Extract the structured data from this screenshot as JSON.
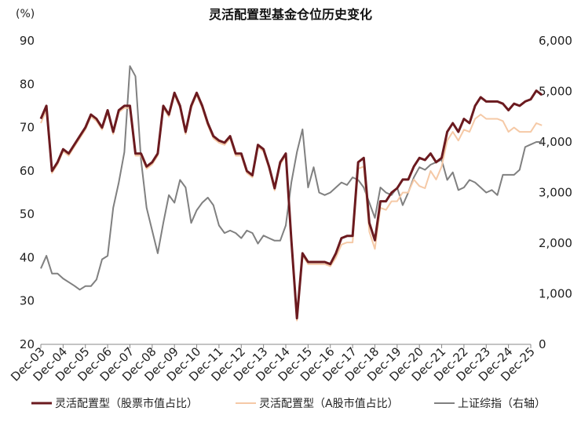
{
  "chart_data": {
    "type": "line",
    "title": "灵活配置型基金仓位历史变化",
    "y_unit": "(%)",
    "ylim_left": [
      20,
      90
    ],
    "yticks_left": [
      "20",
      "30",
      "40",
      "50",
      "60",
      "70",
      "80",
      "90"
    ],
    "ylim_right": [
      0,
      6000
    ],
    "yticks_right": [
      "0",
      "1,000",
      "2,000",
      "3,000",
      "4,000",
      "5,000",
      "6,000"
    ],
    "x_ticks": [
      "Dec-03",
      "Dec-04",
      "Dec-05",
      "Dec-06",
      "Dec-07",
      "Dec-08",
      "Dec-09",
      "Dec-10",
      "Dec-11",
      "Dec-12",
      "Dec-13",
      "Dec-14",
      "Dec-15",
      "Dec-16",
      "Dec-17",
      "Dec-18",
      "Dec-19",
      "Dec-20",
      "Dec-21",
      "Dec-22",
      "Dec-23",
      "Dec-24",
      "Dec-25"
    ],
    "grid": false,
    "legend_position": "bottom",
    "colors": {
      "stock_ratio": "#6b1a1f",
      "a_share_ratio": "#f5c9a6",
      "sse": "#808080"
    },
    "series": [
      {
        "name": "灵活配置型（股票市值占比）",
        "axis": "left",
        "points": [
          [
            0.0,
            72
          ],
          [
            0.25,
            75
          ],
          [
            0.5,
            60
          ],
          [
            0.75,
            62
          ],
          [
            1.0,
            65
          ],
          [
            1.25,
            64
          ],
          [
            1.5,
            66
          ],
          [
            1.75,
            68
          ],
          [
            2.0,
            70
          ],
          [
            2.25,
            73
          ],
          [
            2.5,
            72
          ],
          [
            2.75,
            70
          ],
          [
            3.0,
            74
          ],
          [
            3.25,
            69
          ],
          [
            3.5,
            74
          ],
          [
            3.75,
            75
          ],
          [
            4.0,
            75
          ],
          [
            4.25,
            64
          ],
          [
            4.5,
            64
          ],
          [
            4.75,
            61
          ],
          [
            5.0,
            62
          ],
          [
            5.25,
            64
          ],
          [
            5.5,
            75
          ],
          [
            5.75,
            73
          ],
          [
            6.0,
            78
          ],
          [
            6.25,
            75
          ],
          [
            6.5,
            69
          ],
          [
            6.75,
            75
          ],
          [
            7.0,
            78
          ],
          [
            7.25,
            75
          ],
          [
            7.5,
            71
          ],
          [
            7.75,
            68
          ],
          [
            8.0,
            67
          ],
          [
            8.25,
            66.5
          ],
          [
            8.5,
            68
          ],
          [
            8.75,
            64
          ],
          [
            9.0,
            64
          ],
          [
            9.25,
            60
          ],
          [
            9.5,
            59
          ],
          [
            9.75,
            66
          ],
          [
            10.0,
            65
          ],
          [
            10.25,
            61
          ],
          [
            10.5,
            56
          ],
          [
            10.75,
            62
          ],
          [
            11.0,
            64
          ],
          [
            11.25,
            44
          ],
          [
            11.5,
            26
          ],
          [
            11.75,
            41
          ],
          [
            12.0,
            39
          ],
          [
            12.25,
            39
          ],
          [
            12.5,
            39
          ],
          [
            12.75,
            39
          ],
          [
            13.0,
            38.5
          ],
          [
            13.25,
            41
          ],
          [
            13.5,
            44.5
          ],
          [
            13.75,
            45
          ],
          [
            14.0,
            45
          ],
          [
            14.25,
            62
          ],
          [
            14.5,
            63
          ],
          [
            14.75,
            48
          ],
          [
            15.0,
            44
          ],
          [
            15.25,
            53
          ],
          [
            15.5,
            53
          ],
          [
            15.75,
            55
          ],
          [
            16.0,
            56
          ],
          [
            16.25,
            58
          ],
          [
            16.5,
            58
          ],
          [
            16.75,
            61
          ],
          [
            17.0,
            63
          ],
          [
            17.25,
            62.5
          ],
          [
            17.5,
            64
          ],
          [
            17.75,
            62
          ],
          [
            18.0,
            63
          ],
          [
            18.25,
            69
          ],
          [
            18.5,
            71
          ],
          [
            18.75,
            69
          ],
          [
            19.0,
            72
          ],
          [
            19.25,
            71
          ],
          [
            19.5,
            75
          ],
          [
            19.75,
            77
          ],
          [
            20.0,
            76
          ],
          [
            20.25,
            76
          ],
          [
            20.5,
            76
          ],
          [
            20.75,
            75.5
          ],
          [
            21.0,
            74
          ],
          [
            21.25,
            75.5
          ],
          [
            21.5,
            75
          ],
          [
            21.75,
            76
          ],
          [
            22.0,
            76.5
          ],
          [
            22.25,
            78.5
          ],
          [
            22.5,
            77.5
          ]
        ]
      },
      {
        "name": "灵活配置型（A股市值占比）",
        "axis": "left",
        "points": [
          [
            0.0,
            71
          ],
          [
            0.25,
            74
          ],
          [
            0.5,
            59.5
          ],
          [
            0.75,
            61.5
          ],
          [
            1.0,
            64.5
          ],
          [
            1.25,
            63.5
          ],
          [
            1.5,
            65.5
          ],
          [
            1.75,
            67.5
          ],
          [
            2.0,
            69.5
          ],
          [
            2.25,
            72.5
          ],
          [
            2.5,
            71.5
          ],
          [
            2.75,
            69.5
          ],
          [
            3.0,
            73.5
          ],
          [
            3.25,
            68.5
          ],
          [
            3.5,
            73.5
          ],
          [
            3.75,
            74.5
          ],
          [
            4.0,
            74.5
          ],
          [
            4.25,
            63.5
          ],
          [
            4.5,
            63.5
          ],
          [
            4.75,
            60.5
          ],
          [
            5.0,
            61.5
          ],
          [
            5.25,
            63.5
          ],
          [
            5.5,
            74.5
          ],
          [
            5.75,
            72.5
          ],
          [
            6.0,
            77.5
          ],
          [
            6.25,
            74.5
          ],
          [
            6.5,
            68.5
          ],
          [
            6.75,
            74.5
          ],
          [
            7.0,
            77.5
          ],
          [
            7.25,
            74.5
          ],
          [
            7.5,
            70.5
          ],
          [
            7.75,
            67.5
          ],
          [
            8.0,
            66.5
          ],
          [
            8.25,
            66
          ],
          [
            8.5,
            67.5
          ],
          [
            8.75,
            63.5
          ],
          [
            9.0,
            63.5
          ],
          [
            9.25,
            59.5
          ],
          [
            9.5,
            58.5
          ],
          [
            9.75,
            65.5
          ],
          [
            10.0,
            64.5
          ],
          [
            10.25,
            60.5
          ],
          [
            10.5,
            55.5
          ],
          [
            10.75,
            61.5
          ],
          [
            11.0,
            63.5
          ],
          [
            11.25,
            43.5
          ],
          [
            11.5,
            25.5
          ],
          [
            11.75,
            40.5
          ],
          [
            12.0,
            38.5
          ],
          [
            12.25,
            38.5
          ],
          [
            12.5,
            38.5
          ],
          [
            12.75,
            38.5
          ],
          [
            13.0,
            38
          ],
          [
            13.25,
            40
          ],
          [
            13.5,
            43
          ],
          [
            13.75,
            43.5
          ],
          [
            14.0,
            43.5
          ],
          [
            14.25,
            60.5
          ],
          [
            14.5,
            61
          ],
          [
            14.75,
            46
          ],
          [
            15.0,
            42
          ],
          [
            15.25,
            51.5
          ],
          [
            15.5,
            51
          ],
          [
            15.75,
            53
          ],
          [
            16.0,
            53
          ],
          [
            16.25,
            55
          ],
          [
            16.5,
            55
          ],
          [
            16.75,
            58
          ],
          [
            17.0,
            56.5
          ],
          [
            17.25,
            56
          ],
          [
            17.5,
            60
          ],
          [
            17.75,
            58
          ],
          [
            18.0,
            61
          ],
          [
            18.25,
            67
          ],
          [
            18.5,
            69
          ],
          [
            18.75,
            67
          ],
          [
            19.0,
            69.5
          ],
          [
            19.25,
            69
          ],
          [
            19.5,
            72
          ],
          [
            19.75,
            73
          ],
          [
            20.0,
            72
          ],
          [
            20.25,
            72
          ],
          [
            20.5,
            72
          ],
          [
            20.75,
            71.5
          ],
          [
            21.0,
            69
          ],
          [
            21.25,
            70
          ],
          [
            21.5,
            69
          ],
          [
            21.75,
            69
          ],
          [
            22.0,
            69
          ],
          [
            22.25,
            71
          ],
          [
            22.5,
            70.5
          ]
        ]
      },
      {
        "name": "上证综指（右轴）",
        "axis": "right",
        "points": [
          [
            0.0,
            1500
          ],
          [
            0.25,
            1750
          ],
          [
            0.5,
            1400
          ],
          [
            0.75,
            1400
          ],
          [
            1.0,
            1300
          ],
          [
            1.25,
            1230
          ],
          [
            1.5,
            1160
          ],
          [
            1.75,
            1080
          ],
          [
            2.0,
            1150
          ],
          [
            2.25,
            1150
          ],
          [
            2.5,
            1280
          ],
          [
            2.75,
            1680
          ],
          [
            3.0,
            1750
          ],
          [
            3.25,
            2700
          ],
          [
            3.5,
            3200
          ],
          [
            3.75,
            3800
          ],
          [
            4.0,
            5500
          ],
          [
            4.25,
            5300
          ],
          [
            4.5,
            3650
          ],
          [
            4.75,
            2700
          ],
          [
            5.0,
            2250
          ],
          [
            5.25,
            1800
          ],
          [
            5.5,
            2400
          ],
          [
            5.75,
            2950
          ],
          [
            6.0,
            2800
          ],
          [
            6.25,
            3250
          ],
          [
            6.5,
            3100
          ],
          [
            6.75,
            2400
          ],
          [
            7.0,
            2650
          ],
          [
            7.25,
            2800
          ],
          [
            7.5,
            2900
          ],
          [
            7.75,
            2750
          ],
          [
            8.0,
            2350
          ],
          [
            8.25,
            2200
          ],
          [
            8.5,
            2250
          ],
          [
            8.75,
            2200
          ],
          [
            9.0,
            2100
          ],
          [
            9.25,
            2250
          ],
          [
            9.5,
            2200
          ],
          [
            9.75,
            1990
          ],
          [
            10.0,
            2150
          ],
          [
            10.25,
            2100
          ],
          [
            10.5,
            2050
          ],
          [
            10.75,
            2050
          ],
          [
            11.0,
            2350
          ],
          [
            11.25,
            3200
          ],
          [
            11.5,
            3800
          ],
          [
            11.75,
            4250
          ],
          [
            12.0,
            3100
          ],
          [
            12.25,
            3500
          ],
          [
            12.5,
            3000
          ],
          [
            12.75,
            2950
          ],
          [
            13.0,
            3000
          ],
          [
            13.25,
            3100
          ],
          [
            13.5,
            3200
          ],
          [
            13.75,
            3150
          ],
          [
            14.0,
            3300
          ],
          [
            14.25,
            3250
          ],
          [
            14.5,
            3100
          ],
          [
            14.75,
            2800
          ],
          [
            15.0,
            2500
          ],
          [
            15.25,
            3100
          ],
          [
            15.5,
            3000
          ],
          [
            15.75,
            2950
          ],
          [
            16.0,
            3100
          ],
          [
            16.25,
            2750
          ],
          [
            16.5,
            3000
          ],
          [
            16.75,
            3300
          ],
          [
            17.0,
            3500
          ],
          [
            17.25,
            3450
          ],
          [
            17.5,
            3550
          ],
          [
            17.75,
            3600
          ],
          [
            18.0,
            3650
          ],
          [
            18.25,
            3250
          ],
          [
            18.5,
            3400
          ],
          [
            18.75,
            3050
          ],
          [
            19.0,
            3100
          ],
          [
            19.25,
            3250
          ],
          [
            19.5,
            3200
          ],
          [
            19.75,
            3100
          ],
          [
            20.0,
            3000
          ],
          [
            20.25,
            3050
          ],
          [
            20.5,
            2950
          ],
          [
            20.75,
            3350
          ],
          [
            21.0,
            3350
          ],
          [
            21.25,
            3350
          ],
          [
            21.5,
            3450
          ],
          [
            21.75,
            3900
          ],
          [
            22.0,
            3950
          ],
          [
            22.25,
            4000
          ],
          [
            22.5,
            4000
          ]
        ]
      }
    ]
  }
}
